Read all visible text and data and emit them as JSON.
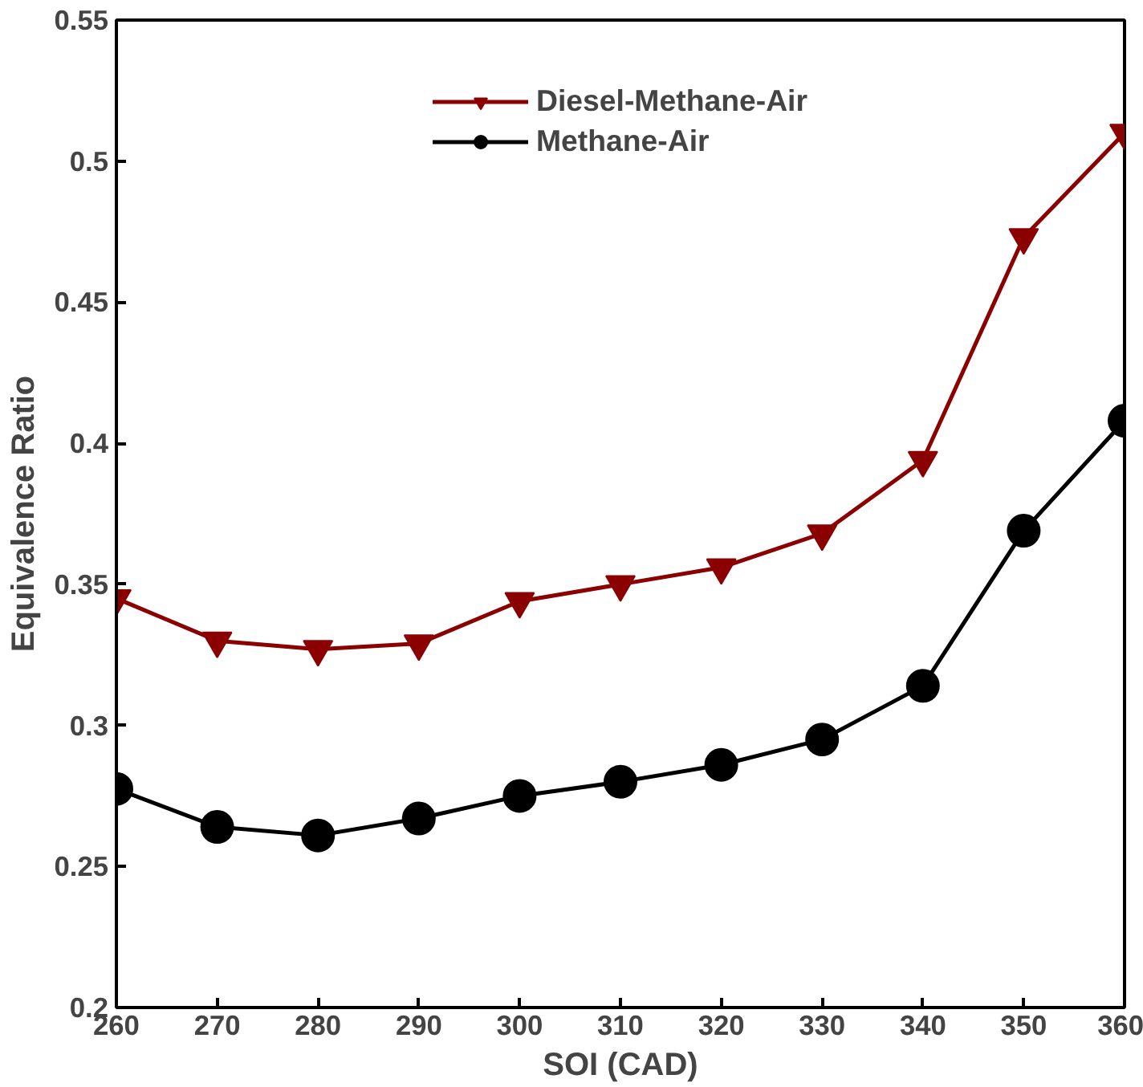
{
  "chart_data": {
    "type": "line",
    "xlabel": "SOI (CAD)",
    "ylabel": "Equivalence Ratio",
    "x": [
      260,
      270,
      280,
      290,
      300,
      310,
      320,
      330,
      340,
      350,
      360
    ],
    "series": [
      {
        "name": "Diesel-Methane-Air",
        "color": "#8b0000",
        "marker": "triangle",
        "values": [
          0.345,
          0.33,
          0.327,
          0.329,
          0.344,
          0.35,
          0.356,
          0.368,
          0.394,
          0.473,
          0.51
        ]
      },
      {
        "name": "Methane-Air",
        "color": "#000000",
        "marker": "circle",
        "values": [
          0.2775,
          0.264,
          0.261,
          0.267,
          0.275,
          0.28,
          0.286,
          0.295,
          0.314,
          0.369,
          0.408
        ]
      }
    ],
    "xlim": [
      260,
      360
    ],
    "xticks": [
      260,
      270,
      280,
      290,
      300,
      310,
      320,
      330,
      340,
      350,
      360
    ],
    "ylim": [
      0.2,
      0.55
    ],
    "yticks": [
      0.2,
      0.25,
      0.3,
      0.35,
      0.4,
      0.45,
      0.5,
      0.55
    ],
    "grid": false,
    "legend": "top",
    "line_style": "solid"
  }
}
